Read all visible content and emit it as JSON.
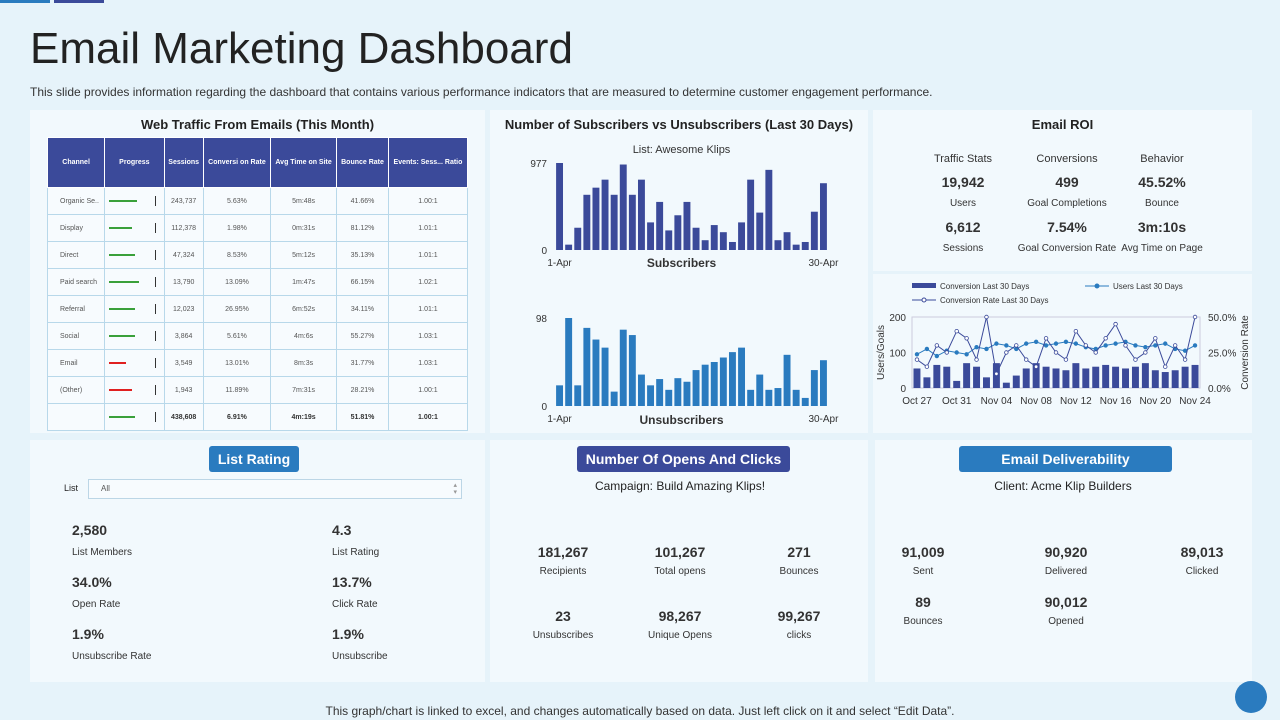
{
  "header": {
    "title": "Email Marketing Dashboard",
    "subtitle": "This slide provides information regarding the dashboard that contains various performance indicators that are measured to determine customer engagement performance."
  },
  "panels": {
    "web_traffic": "Web Traffic From Emails (This Month)",
    "subscribers": "Number of Subscribers vs Unsubscribers (Last 30 Days)",
    "roi": "Email ROI"
  },
  "table": {
    "headers": [
      "Channel",
      "Progress",
      "Sessions",
      "Conversi on Rate",
      "Avg Time on Site",
      "Bounce Rate",
      "Events: Sess... Ratio"
    ],
    "rows": [
      {
        "cells": [
          "Organic Se..",
          "243,737",
          "5.63%",
          "5m:48s",
          "41.66%",
          "1.00:1"
        ],
        "progress": 65,
        "progress_color": "#3aa03a"
      },
      {
        "cells": [
          "Display",
          "112,378",
          "1.98%",
          "0m:31s",
          "81.12%",
          "1.01:1"
        ],
        "progress": 55,
        "progress_color": "#3aa03a"
      },
      {
        "cells": [
          "Direct",
          "47,324",
          "8.53%",
          "5m:12s",
          "35.13%",
          "1.01:1"
        ],
        "progress": 60,
        "progress_color": "#3aa03a"
      },
      {
        "cells": [
          "Paid search",
          "13,790",
          "13.09%",
          "1m:47s",
          "66.15%",
          "1.02:1"
        ],
        "progress": 70,
        "progress_color": "#3aa03a"
      },
      {
        "cells": [
          "Referral",
          "12,023",
          "26.95%",
          "6m:52s",
          "34.11%",
          "1.01:1"
        ],
        "progress": 60,
        "progress_color": "#3aa03a"
      },
      {
        "cells": [
          "Social",
          "3,864",
          "5.61%",
          "4m:6s",
          "55.27%",
          "1.03:1"
        ],
        "progress": 60,
        "progress_color": "#3aa03a"
      },
      {
        "cells": [
          "Email",
          "3,549",
          "13.01%",
          "8m:3s",
          "31.77%",
          "1.03:1"
        ],
        "progress": 40,
        "progress_color": "#e02020"
      },
      {
        "cells": [
          "(Other)",
          "1,943",
          "11.89%",
          "7m:31s",
          "28.21%",
          "1.00:1"
        ],
        "progress": 55,
        "progress_color": "#e02020"
      }
    ],
    "total": {
      "cells": [
        "438,608",
        "6.91%",
        "4m:19s",
        "51.81%",
        "1.00:1"
      ],
      "progress": 60,
      "progress_color": "#3aa03a"
    }
  },
  "roi_stats": {
    "headers": [
      "Traffic Stats",
      "Conversions",
      "Behavior"
    ],
    "stats": [
      {
        "value": "19,942",
        "label": "Users"
      },
      {
        "value": "499",
        "label": "Goal Completions"
      },
      {
        "value": "45.52%",
        "label": "Bounce"
      },
      {
        "value": "6,612",
        "label": "Sessions"
      },
      {
        "value": "7.54%",
        "label": "Goal Conversion Rate"
      },
      {
        "value": "3m:10s",
        "label": "Avg Time on Page"
      }
    ]
  },
  "list_rating": {
    "title": "List Rating",
    "filter_label": "List",
    "filter_value": "All",
    "stats": [
      {
        "value": "2,580",
        "label": "List Members"
      },
      {
        "value": "4.3",
        "label": "List Rating"
      },
      {
        "value": "34.0%",
        "label": "Open Rate"
      },
      {
        "value": "13.7%",
        "label": "Click Rate"
      },
      {
        "value": "1.9%",
        "label": "Unsubscribe  Rate"
      },
      {
        "value": "1.9%",
        "label": "Unsubscribe"
      }
    ]
  },
  "opens_clicks": {
    "title": "Number Of Opens And Clicks",
    "subtitle": "Campaign: Build Amazing Klips!",
    "stats": [
      {
        "value": "181,267",
        "label": "Recipients"
      },
      {
        "value": "101,267",
        "label": "Total opens"
      },
      {
        "value": "271",
        "label": "Bounces"
      },
      {
        "value": "23",
        "label": "Unsubscribes"
      },
      {
        "value": "98,267",
        "label": "Unique Opens"
      },
      {
        "value": "99,267",
        "label": "clicks"
      }
    ]
  },
  "deliverability": {
    "title": "Email Deliverability",
    "subtitle": "Client: Acme Klip Builders",
    "stats": [
      {
        "value": "91,009",
        "label": "Sent"
      },
      {
        "value": "90,920",
        "label": "Delivered"
      },
      {
        "value": "89,013",
        "label": "Clicked"
      },
      {
        "value": "89",
        "label": "Bounces"
      },
      {
        "value": "90,012",
        "label": "Opened"
      }
    ]
  },
  "footer": "This graph/chart is linked to excel,  and changes automatically based on data. Just left click on it and select “Edit Data”.",
  "chart_data": [
    {
      "type": "bar",
      "title": "List: Awesome Klips",
      "xlabel": "Subscribers",
      "color": "#3b4a9a",
      "categories": [
        "1-Apr",
        null,
        null,
        null,
        null,
        null,
        null,
        null,
        null,
        null,
        null,
        null,
        null,
        null,
        null,
        null,
        null,
        null,
        null,
        null,
        null,
        null,
        null,
        null,
        null,
        null,
        null,
        null,
        null,
        "30-Apr"
      ],
      "values": [
        977,
        60,
        250,
        620,
        700,
        790,
        620,
        960,
        620,
        790,
        310,
        540,
        220,
        390,
        540,
        250,
        110,
        280,
        200,
        90,
        310,
        790,
        420,
        900,
        110,
        200,
        60,
        90,
        430,
        750
      ],
      "ylim": [
        0,
        977
      ],
      "yticks": [
        0,
        977
      ]
    },
    {
      "type": "bar",
      "xlabel": "Unsubscribers",
      "color": "#2a7bbf",
      "categories": [
        "1-Apr",
        null,
        null,
        null,
        null,
        null,
        null,
        null,
        null,
        null,
        null,
        null,
        null,
        null,
        null,
        null,
        null,
        null,
        null,
        null,
        null,
        null,
        null,
        null,
        null,
        null,
        null,
        null,
        null,
        "30-Apr"
      ],
      "values": [
        23,
        98,
        23,
        87,
        74,
        65,
        16,
        85,
        79,
        35,
        23,
        30,
        18,
        31,
        27,
        40,
        46,
        49,
        54,
        60,
        65,
        18,
        35,
        18,
        20,
        57,
        18,
        9,
        40,
        51
      ],
      "ylim": [
        0,
        98
      ],
      "yticks": [
        0,
        98
      ]
    },
    {
      "type": "mixed",
      "ylabel": "Users/Goals",
      "y2label": "Conversion Rate",
      "categories": [
        "Oct 27",
        null,
        null,
        null,
        "Oct 31",
        null,
        null,
        null,
        "Nov 04",
        null,
        null,
        null,
        "Nov 08",
        null,
        null,
        null,
        "Nov 12",
        null,
        null,
        null,
        "Nov 16",
        null,
        null,
        null,
        "Nov 20",
        null,
        null,
        null,
        "Nov 24"
      ],
      "series": [
        {
          "name": "Conversion Last 30 Days",
          "kind": "bar",
          "color": "#3b4a9a",
          "values": [
            55,
            30,
            65,
            60,
            20,
            70,
            60,
            30,
            70,
            15,
            35,
            55,
            70,
            60,
            55,
            50,
            70,
            55,
            60,
            65,
            60,
            55,
            60,
            70,
            50,
            45,
            50,
            60,
            65
          ]
        },
        {
          "name": "Users Last 30 Days",
          "kind": "line",
          "marker": "filled",
          "color": "#2a7bbf",
          "values": [
            95,
            110,
            90,
            105,
            100,
            95,
            115,
            110,
            125,
            120,
            110,
            125,
            130,
            120,
            125,
            130,
            125,
            115,
            110,
            120,
            125,
            130,
            120,
            115,
            120,
            125,
            110,
            105,
            120
          ]
        },
        {
          "name": "Conversion Rate Last 30 Days",
          "kind": "line",
          "marker": "open",
          "axis": "y2",
          "color": "#3b4a9a",
          "values": [
            20,
            15,
            30,
            25,
            40,
            35,
            20,
            50,
            10,
            25,
            30,
            20,
            15,
            35,
            25,
            20,
            40,
            30,
            25,
            35,
            45,
            30,
            20,
            25,
            35,
            15,
            30,
            20,
            50
          ]
        }
      ],
      "ylim": [
        0,
        200
      ],
      "yticks": [
        0,
        100,
        200
      ],
      "y2lim": [
        0,
        50
      ],
      "y2ticks": [
        {
          "value": 0,
          "label": "0.0%"
        },
        {
          "value": 25,
          "label": "25.0%"
        },
        {
          "value": 50,
          "label": "50.0%"
        }
      ]
    }
  ]
}
